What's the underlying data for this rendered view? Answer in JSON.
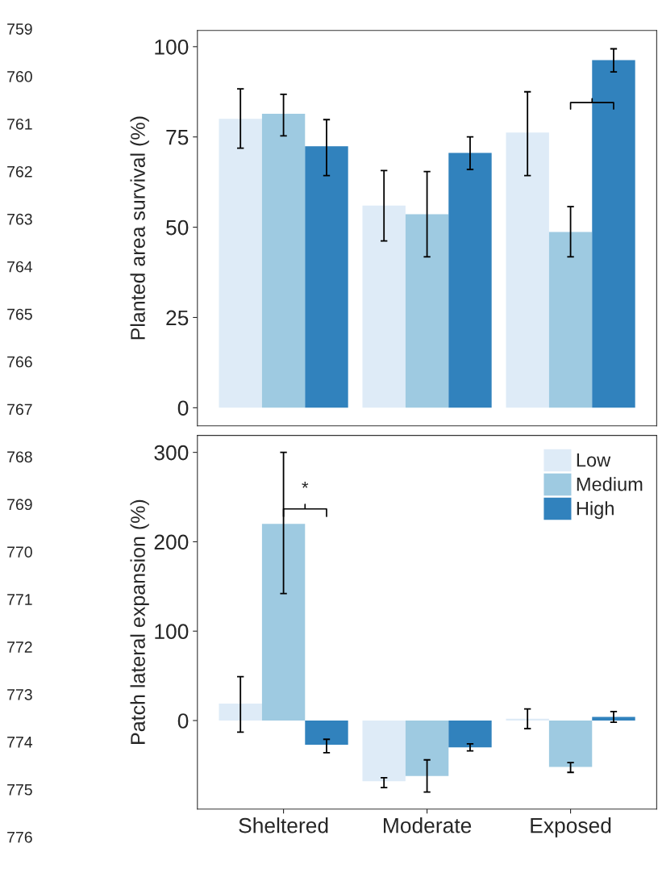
{
  "chart_data": [
    {
      "type": "bar",
      "ylabel": "Planted area survival (%)",
      "categories": [
        null,
        null,
        null
      ],
      "series": [
        {
          "color": "#deebf7",
          "values": [
            80,
            56,
            76.2
          ],
          "errors": [
            [
              71.9,
              88.3
            ],
            [
              46.2,
              65.7
            ],
            [
              64.3,
              87.5
            ]
          ]
        },
        {
          "color": "#9ecae1",
          "values": [
            81.4,
            53.6,
            48.7
          ],
          "errors": [
            [
              75.3,
              86.8
            ],
            [
              41.8,
              65.4
            ],
            [
              41.8,
              55.7
            ]
          ]
        },
        {
          "color": "#3182bd",
          "values": [
            72.4,
            70.6,
            96.3
          ],
          "errors": [
            [
              64.3,
              79.8
            ],
            [
              66,
              75
            ],
            [
              93,
              99.4
            ]
          ]
        }
      ],
      "ylim": [
        -5,
        104.5
      ],
      "yticks": [
        0,
        25,
        50,
        75,
        100
      ],
      "tick_labels": "y",
      "grid": false,
      "legend": false,
      "annotations": [
        "759",
        "760",
        "761",
        "762",
        "763",
        "764",
        "765",
        "766",
        "767",
        "768",
        "769",
        "770",
        "771",
        "772",
        "773",
        "774",
        "775",
        "776"
      ]
    },
    {
      "type": "bar",
      "ylabel": "Patch lateral expansion (%)",
      "categories": [
        "Sheltered",
        "Moderate",
        "Exposed"
      ],
      "series": [
        {
          "name": "Low",
          "color": "#deebf7",
          "values": [
            19,
            -68,
            2
          ],
          "errors": [
            [
              -13,
              49
            ],
            [
              -75,
              -64
            ],
            [
              -9,
              13
            ]
          ]
        },
        {
          "name": "Medium",
          "color": "#9ecae1",
          "values": [
            220,
            -62,
            -52
          ],
          "errors": [
            [
              142,
              300
            ],
            [
              -80,
              -44
            ],
            [
              -58,
              -47
            ]
          ]
        },
        {
          "name": "High",
          "color": "#3182bd",
          "values": [
            -27,
            -30,
            4
          ],
          "errors": [
            [
              -36,
              -21
            ],
            [
              -34,
              -26
            ],
            [
              -2,
              10
            ]
          ]
        }
      ],
      "ylim": [
        -99,
        319
      ],
      "yticks": [
        0,
        100,
        200,
        300
      ],
      "grid": false,
      "legend": "top right",
      "annotations": [
        {
          "text": "*",
          "x": "Sheltered",
          "y": 243
        }
      ]
    }
  ]
}
